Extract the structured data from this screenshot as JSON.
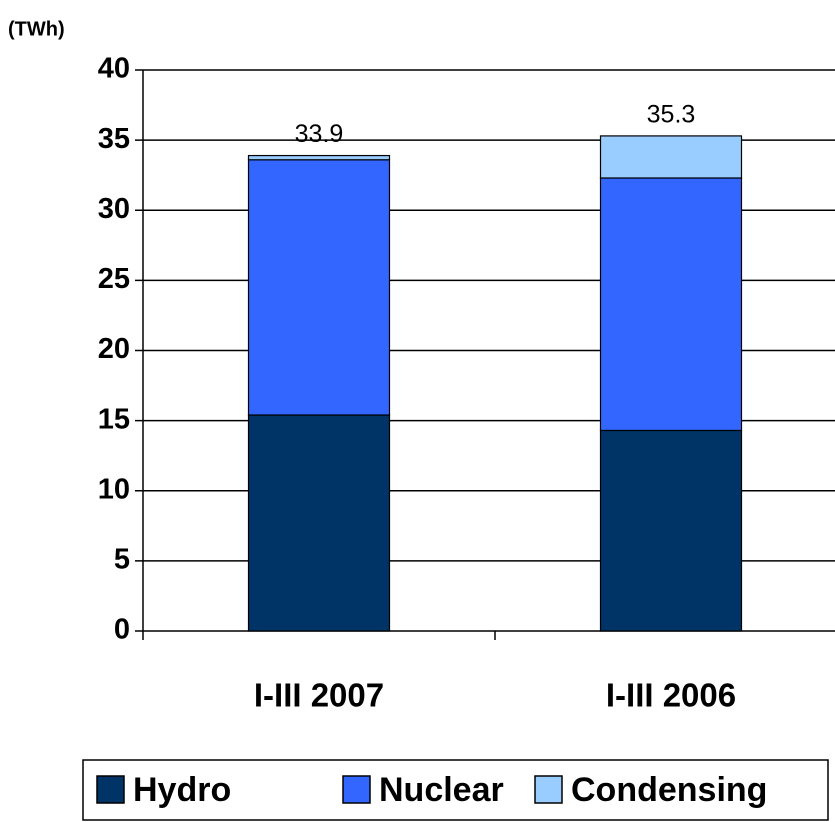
{
  "chart_data": {
    "type": "stacked_bar",
    "y_label": "(TWh)",
    "categories": [
      "I-III 2007",
      "I-III 2006"
    ],
    "series": [
      {
        "name": "Hydro",
        "color": "#003366",
        "values": [
          15.4,
          14.3
        ]
      },
      {
        "name": "Nuclear",
        "color": "#3366ff",
        "values": [
          18.2,
          18.0
        ]
      },
      {
        "name": "Condensing",
        "color": "#99ccff",
        "values": [
          0.3,
          3.0
        ]
      }
    ],
    "total_labels": [
      33.9,
      35.3
    ],
    "ylim": [
      0,
      40
    ],
    "yticks": [
      0,
      5,
      10,
      15,
      20,
      25,
      30,
      35,
      40
    ],
    "grid": true,
    "legend": "bottom"
  }
}
